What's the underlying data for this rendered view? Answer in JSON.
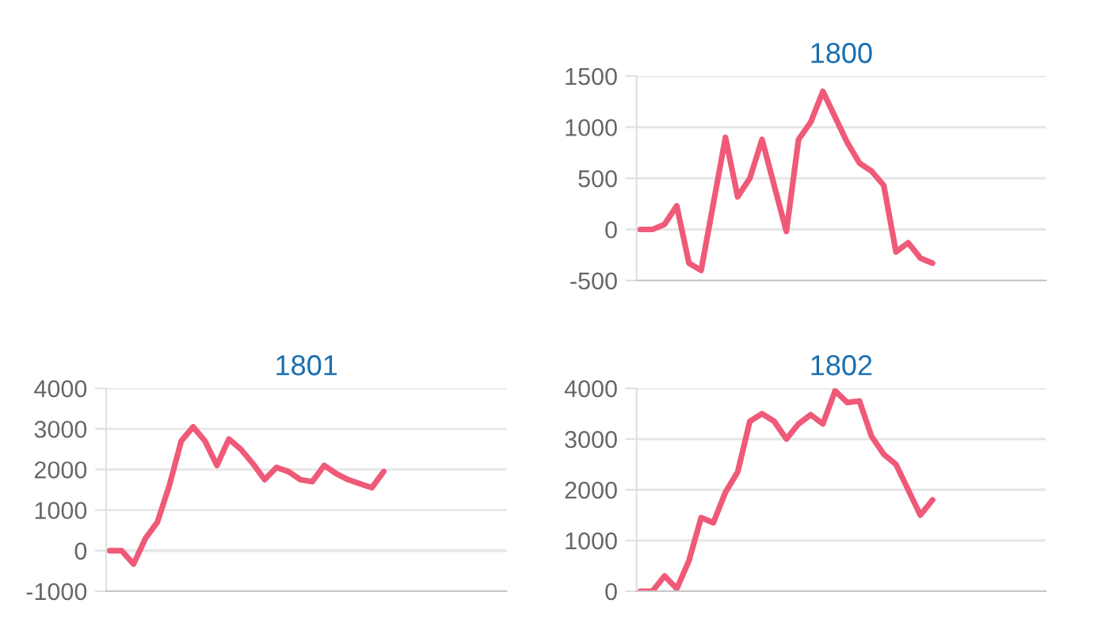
{
  "chart_data": [
    {
      "type": "line",
      "title": "1800",
      "categories": [
        null,
        null,
        null,
        null,
        null,
        null,
        null,
        null,
        null,
        null,
        null,
        null,
        null,
        null,
        null,
        null,
        null,
        null,
        null,
        null,
        null,
        null,
        null,
        null,
        null,
        null,
        null,
        null,
        null,
        null,
        null,
        null,
        null,
        null
      ],
      "series": [
        {
          "color": "#ef5a78",
          "values": [
            0,
            0,
            50,
            230,
            -330,
            -400,
            250,
            900,
            320,
            500,
            880,
            430,
            -20,
            880,
            1050,
            1350,
            1100,
            850,
            650,
            570,
            430,
            -220,
            -130,
            -280,
            -330,
            null,
            null,
            null,
            null,
            null,
            null,
            null,
            null,
            null
          ]
        }
      ],
      "ylim": [
        -500,
        1500
      ],
      "yticks": [
        -500,
        0,
        500,
        1000,
        1500
      ],
      "grid": "y",
      "tick_labels": "y",
      "marker": "none",
      "line_style": "solid"
    },
    {
      "type": "line",
      "title": "1801",
      "categories": [
        null,
        null,
        null,
        null,
        null,
        null,
        null,
        null,
        null,
        null,
        null,
        null,
        null,
        null,
        null,
        null,
        null,
        null,
        null,
        null,
        null,
        null,
        null,
        null,
        null,
        null,
        null,
        null,
        null,
        null,
        null,
        null,
        null,
        null
      ],
      "series": [
        {
          "color": "#ef5a78",
          "values": [
            0,
            0,
            -330,
            300,
            700,
            1600,
            2700,
            3050,
            2700,
            2100,
            2750,
            2500,
            2150,
            1750,
            2050,
            1950,
            1750,
            1700,
            2100,
            1900,
            1750,
            1650,
            1550,
            1950,
            null,
            null,
            null,
            null,
            null,
            null,
            null,
            null,
            null,
            null
          ]
        }
      ],
      "ylim": [
        -1000,
        4000
      ],
      "yticks": [
        -1000,
        0,
        1000,
        2000,
        3000,
        4000
      ],
      "grid": "y",
      "tick_labels": "y",
      "marker": "none",
      "line_style": "solid"
    },
    {
      "type": "line",
      "title": "1802",
      "categories": [
        null,
        null,
        null,
        null,
        null,
        null,
        null,
        null,
        null,
        null,
        null,
        null,
        null,
        null,
        null,
        null,
        null,
        null,
        null,
        null,
        null,
        null,
        null,
        null,
        null,
        null,
        null,
        null,
        null,
        null,
        null,
        null,
        null,
        null
      ],
      "series": [
        {
          "color": "#ef5a78",
          "values": [
            0,
            0,
            300,
            50,
            600,
            1450,
            1350,
            1950,
            2350,
            3350,
            3500,
            3350,
            3000,
            3300,
            3480,
            3300,
            3950,
            3720,
            3750,
            3050,
            2700,
            2500,
            2000,
            1500,
            1800,
            null,
            null,
            null,
            null,
            null,
            null,
            null,
            null,
            null
          ]
        }
      ],
      "ylim": [
        0,
        4000
      ],
      "yticks": [
        0,
        1000,
        2000,
        3000,
        4000
      ],
      "grid": "y",
      "tick_labels": "y",
      "marker": "none",
      "line_style": "solid"
    }
  ]
}
